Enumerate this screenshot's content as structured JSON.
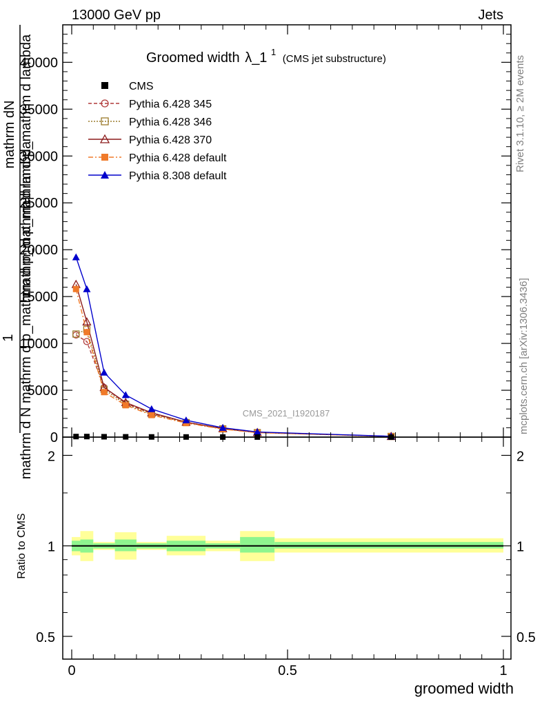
{
  "header": {
    "beam": "13000 GeV pp",
    "process": "Jets",
    "title_main": "Groomed width",
    "title_lambda": "λ_1",
    "title_sup": "1",
    "title_sub": "(CMS jet substructure)",
    "analysis_id": "CMS_2021_I1920187",
    "rivet": "Rivet 3.1.10, ≥ 2M events",
    "site": "mcplots.cern.ch [arXiv:1306.3436]"
  },
  "axes": {
    "main_ylabel_a": "1",
    "main_ylabel_b": "mathrm d N",
    "main_ylabel_c": "mathrm dN",
    "main_ylabel_d": "mathrm d p_mathrm d p_mathrm d lambda",
    "main_ylabel_e": "mathrm d N  mathrm d p_mathrm d p_mathrm d lambda",
    "ratio_ylabel": "Ratio to CMS",
    "xlabel": "groomed width",
    "main_yticks": [
      "0",
      "5000",
      "10000",
      "15000",
      "20000",
      "25000",
      "30000",
      "35000",
      "40000"
    ],
    "ratio_yticks": [
      "0.5",
      "1",
      "2"
    ],
    "xticks": [
      "0",
      "0.5",
      "1"
    ]
  },
  "legend": [
    {
      "label": "CMS",
      "color": "#000000",
      "marker": "square-filled",
      "dash": ""
    },
    {
      "label": "Pythia 6.428 345",
      "color": "#b03a3a",
      "marker": "circle-open",
      "dash": "5,3"
    },
    {
      "label": "Pythia 6.428 346",
      "color": "#9a7a2a",
      "marker": "square-open",
      "dash": "2,2"
    },
    {
      "label": "Pythia 6.428 370",
      "color": "#8b1a1a",
      "marker": "triangle-open",
      "dash": ""
    },
    {
      "label": "Pythia 6.428 default",
      "color": "#f07a2a",
      "marker": "square-filled",
      "dash": "7,3,2,3"
    },
    {
      "label": "Pythia 8.308 default",
      "color": "#0000cc",
      "marker": "triangle-filled",
      "dash": ""
    }
  ],
  "chart_data": {
    "type": "line",
    "xlim": [
      0,
      1
    ],
    "ylim": [
      0,
      44000
    ],
    "ratio_ylim": [
      0.42,
      2.3
    ],
    "ratio_log": true,
    "x": [
      0.01,
      0.035,
      0.075,
      0.125,
      0.185,
      0.265,
      0.35,
      0.43,
      0.74
    ],
    "bin_edges": [
      0,
      0.02,
      0.05,
      0.1,
      0.15,
      0.22,
      0.31,
      0.39,
      0.47,
      1.0
    ],
    "data_values": [
      60,
      60,
      40,
      30,
      20,
      15,
      10,
      8,
      2
    ],
    "series": [
      {
        "name": "Pythia 6.428 345",
        "values": [
          10900,
          10200,
          5300,
          3600,
          2500,
          1600,
          900,
          500,
          80
        ]
      },
      {
        "name": "Pythia 6.428 346",
        "values": [
          11000,
          11500,
          5100,
          3500,
          2450,
          1550,
          880,
          480,
          75
        ]
      },
      {
        "name": "Pythia 6.428 370",
        "values": [
          16300,
          12300,
          5300,
          3700,
          2600,
          1600,
          910,
          500,
          80
        ]
      },
      {
        "name": "Pythia 6.428 default",
        "values": [
          15800,
          11200,
          4800,
          3400,
          2350,
          1500,
          850,
          470,
          70
        ]
      },
      {
        "name": "Pythia 8.308 default",
        "values": [
          19200,
          15800,
          6900,
          4500,
          3000,
          1800,
          1000,
          550,
          90
        ]
      }
    ],
    "ratio_bands": [
      {
        "x0": 0,
        "x1": 0.02,
        "green": [
          0.96,
          1.04
        ],
        "yellow": [
          0.93,
          1.07
        ]
      },
      {
        "x0": 0.02,
        "x1": 0.05,
        "green": [
          0.95,
          1.05
        ],
        "yellow": [
          0.89,
          1.12
        ]
      },
      {
        "x0": 0.05,
        "x1": 0.1,
        "green": [
          0.98,
          1.02
        ],
        "yellow": [
          0.97,
          1.03
        ]
      },
      {
        "x0": 0.1,
        "x1": 0.15,
        "green": [
          0.96,
          1.05
        ],
        "yellow": [
          0.9,
          1.11
        ]
      },
      {
        "x0": 0.15,
        "x1": 0.22,
        "green": [
          0.98,
          1.02
        ],
        "yellow": [
          0.97,
          1.03
        ]
      },
      {
        "x0": 0.22,
        "x1": 0.31,
        "green": [
          0.96,
          1.04
        ],
        "yellow": [
          0.93,
          1.08
        ]
      },
      {
        "x0": 0.31,
        "x1": 0.39,
        "green": [
          0.98,
          1.02
        ],
        "yellow": [
          0.96,
          1.04
        ]
      },
      {
        "x0": 0.39,
        "x1": 0.47,
        "green": [
          0.95,
          1.07
        ],
        "yellow": [
          0.89,
          1.12
        ]
      },
      {
        "x0": 0.47,
        "x1": 1.0,
        "green": [
          0.98,
          1.03
        ],
        "yellow": [
          0.95,
          1.06
        ]
      }
    ],
    "band_colors": {
      "green": "#8ef58e",
      "yellow": "#ffff99"
    }
  }
}
